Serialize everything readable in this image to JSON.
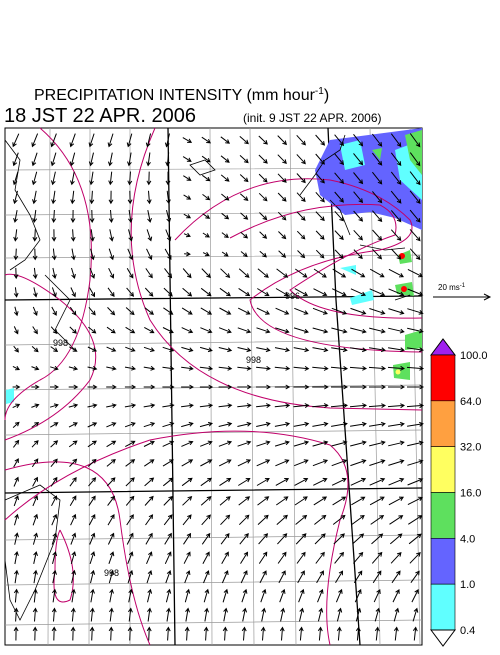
{
  "header": {
    "title": "PRECIPITATION INTENSITY (mm hour",
    "title_sup": "-1",
    "title_end": ")",
    "valid_time": "18 JST 22 APR. 2006",
    "init_time": "(init. 9 JST 22 APR. 2006)"
  },
  "wind_reference": {
    "label": "20 ms",
    "sup": "-1"
  },
  "colorbar": {
    "top_color": "#a020f0",
    "bottom_color": "#ffffff",
    "segments": [
      {
        "color": "#ff0000"
      },
      {
        "color": "#ffa040"
      },
      {
        "color": "#ffff60"
      },
      {
        "color": "#5ee05e"
      },
      {
        "color": "#6464ff"
      },
      {
        "color": "#60ffff"
      }
    ],
    "labels": [
      "100.0",
      "64.0",
      "32.0",
      "16.0",
      "4.0",
      "1.0",
      "0.4"
    ]
  },
  "contour_labels": [
    "996",
    "998",
    "998",
    "998"
  ]
}
